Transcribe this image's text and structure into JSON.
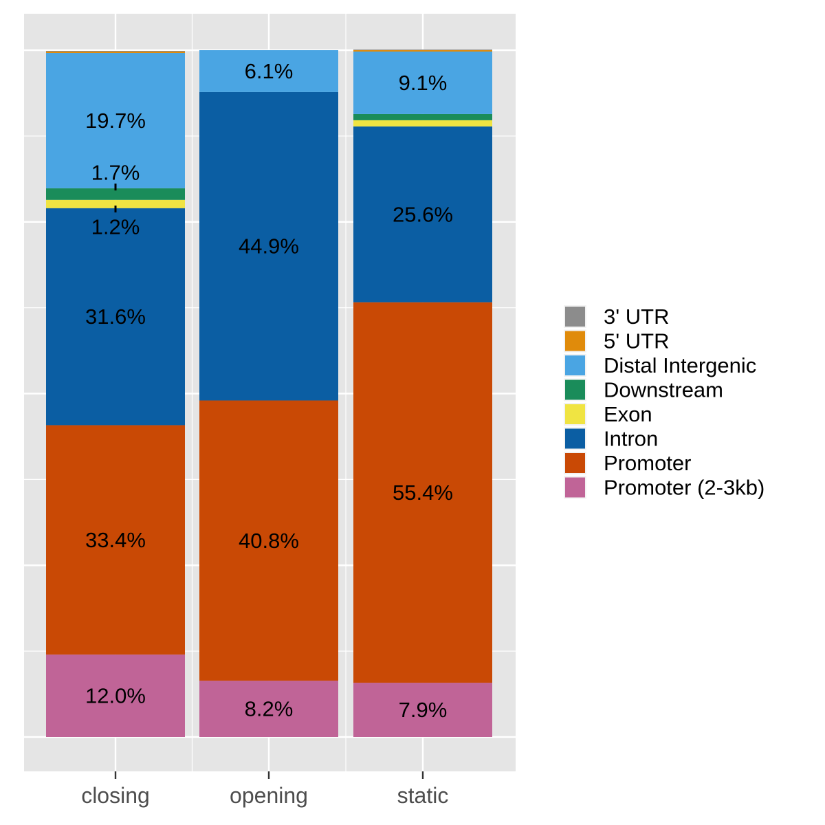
{
  "chart_data": {
    "type": "bar",
    "stacked": true,
    "categories": [
      "closing",
      "opening",
      "static"
    ],
    "ylim": [
      0,
      100
    ],
    "grid": true,
    "legend_position": "right",
    "series": [
      {
        "name": "3' UTR",
        "color": "#8c8c8c",
        "values": [
          0.1,
          0.0,
          0.1
        ]
      },
      {
        "name": "5' UTR",
        "color": "#e08b0b",
        "values": [
          0.2,
          0.0,
          0.2
        ]
      },
      {
        "name": "Distal Intergenic",
        "color": "#4aa5e3",
        "values": [
          19.7,
          6.1,
          9.1
        ]
      },
      {
        "name": "Downstream",
        "color": "#1a8c5a",
        "values": [
          1.7,
          0.0,
          0.9
        ]
      },
      {
        "name": "Exon",
        "color": "#f0e442",
        "values": [
          1.2,
          0.0,
          0.9
        ]
      },
      {
        "name": "Intron",
        "color": "#0b5ea3",
        "values": [
          31.6,
          44.9,
          25.6
        ]
      },
      {
        "name": "Promoter",
        "color": "#c94905",
        "values": [
          33.4,
          40.8,
          55.4
        ]
      },
      {
        "name": "Promoter (2-3kb)",
        "color": "#c06497",
        "values": [
          12.0,
          8.2,
          7.9
        ]
      }
    ],
    "labels": [
      {
        "category": "closing",
        "series": "Distal Intergenic",
        "text": "19.7%"
      },
      {
        "category": "closing",
        "series": "Downstream",
        "text": "1.7%"
      },
      {
        "category": "closing",
        "series": "Exon",
        "text": "1.2%"
      },
      {
        "category": "closing",
        "series": "Intron",
        "text": "31.6%"
      },
      {
        "category": "closing",
        "series": "Promoter",
        "text": "33.4%"
      },
      {
        "category": "closing",
        "series": "Promoter (2-3kb)",
        "text": "12.0%"
      },
      {
        "category": "opening",
        "series": "Distal Intergenic",
        "text": "6.1%"
      },
      {
        "category": "opening",
        "series": "Intron",
        "text": "44.9%"
      },
      {
        "category": "opening",
        "series": "Promoter",
        "text": "40.8%"
      },
      {
        "category": "opening",
        "series": "Promoter (2-3kb)",
        "text": "8.2%"
      },
      {
        "category": "static",
        "series": "Distal Intergenic",
        "text": "9.1%"
      },
      {
        "category": "static",
        "series": "Intron",
        "text": "25.6%"
      },
      {
        "category": "static",
        "series": "Promoter",
        "text": "55.4%"
      },
      {
        "category": "static",
        "series": "Promoter (2-3kb)",
        "text": "7.9%"
      }
    ]
  }
}
